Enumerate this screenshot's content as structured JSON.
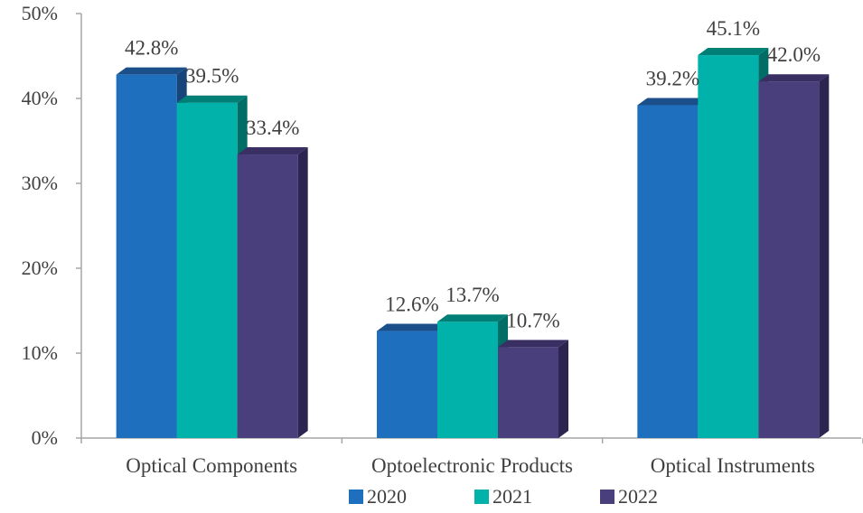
{
  "chart_data": {
    "type": "bar",
    "title": "",
    "xlabel": "",
    "ylabel": "",
    "ylim": [
      0,
      50
    ],
    "y_ticks": [
      "0%",
      "10%",
      "20%",
      "30%",
      "40%",
      "50%"
    ],
    "categories": [
      "Optical Components",
      "Optoelectronic Products",
      "Optical Instruments"
    ],
    "series": [
      {
        "name": "2020",
        "values": [
          42.8,
          12.6,
          39.2
        ],
        "labels": [
          "42.8%",
          "12.6%",
          "39.2%"
        ],
        "color": "#1f6fbf",
        "top_color": "#1b4f8a",
        "side_color": "#17457a"
      },
      {
        "name": "2021",
        "values": [
          39.5,
          13.7,
          45.1
        ],
        "labels": [
          "39.5%",
          "13.7%",
          "45.1%"
        ],
        "color": "#00b2a9",
        "top_color": "#007f76",
        "side_color": "#006e67"
      },
      {
        "name": "2022",
        "values": [
          33.4,
          10.7,
          42.0
        ],
        "labels": [
          "33.4%",
          "10.7%",
          "42.0%"
        ],
        "color": "#4a3f7d",
        "top_color": "#3a2f63",
        "side_color": "#2d2450"
      }
    ],
    "legend_position": "bottom",
    "grid": false
  }
}
